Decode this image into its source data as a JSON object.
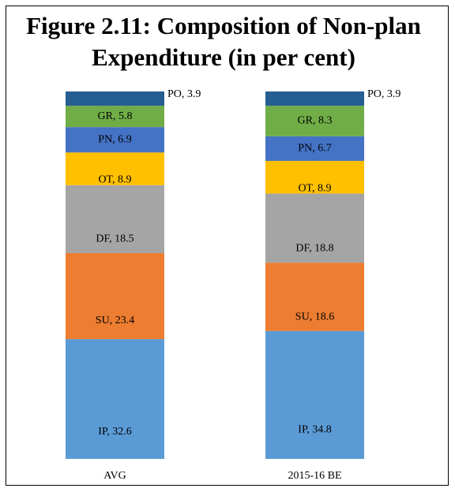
{
  "chart_data": {
    "type": "stacked_bar",
    "title": [
      "Figure 2.11: Composition of Non-plan",
      "Expenditure (in per cent)"
    ],
    "categories": [
      "AVG",
      "2015-16 BE"
    ],
    "series": [
      {
        "name": "IP",
        "color": "#5b9bd5",
        "values": [
          32.6,
          34.8
        ],
        "value_labels": [
          "IP, 32.6",
          "IP, 34.8"
        ]
      },
      {
        "name": "SU",
        "color": "#ed7d31",
        "values": [
          23.4,
          18.6
        ],
        "value_labels": [
          "SU, 23.4",
          "SU, 18.6"
        ]
      },
      {
        "name": "DF",
        "color": "#a5a5a5",
        "values": [
          18.5,
          18.8
        ],
        "value_labels": [
          "DF, 18.5",
          "DF, 18.8"
        ]
      },
      {
        "name": "OT",
        "color": "#ffc000",
        "values": [
          8.9,
          8.9
        ],
        "value_labels": [
          "OT, 8.9",
          "OT, 8.9"
        ]
      },
      {
        "name": "PN",
        "color": "#4472c4",
        "values": [
          6.9,
          6.7
        ],
        "value_labels": [
          "PN, 6.9",
          "PN, 6.7"
        ]
      },
      {
        "name": "GR",
        "color": "#70ad47",
        "values": [
          5.8,
          8.3
        ],
        "value_labels": [
          "GR, 5.8",
          "GR, 8.3"
        ]
      },
      {
        "name": "PO",
        "color": "#255e91",
        "values": [
          3.9,
          3.9
        ],
        "value_labels": [
          "PO, 3.9",
          "PO, 3.9"
        ]
      }
    ]
  }
}
